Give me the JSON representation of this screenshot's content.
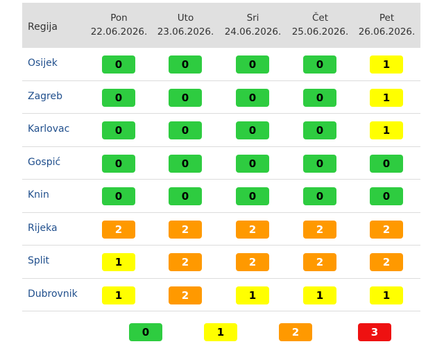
{
  "header": {
    "region_label": "Regija",
    "days": [
      {
        "name": "Pon",
        "date": "22.06.2026."
      },
      {
        "name": "Uto",
        "date": "23.06.2026."
      },
      {
        "name": "Sri",
        "date": "24.06.2026."
      },
      {
        "name": "Čet",
        "date": "25.06.2026."
      },
      {
        "name": "Pet",
        "date": "26.06.2026."
      }
    ]
  },
  "rows": [
    {
      "region": "Osijek",
      "levels": [
        "0",
        "0",
        "0",
        "0",
        "1"
      ]
    },
    {
      "region": "Zagreb",
      "levels": [
        "0",
        "0",
        "0",
        "0",
        "1"
      ]
    },
    {
      "region": "Karlovac",
      "levels": [
        "0",
        "0",
        "0",
        "0",
        "1"
      ]
    },
    {
      "region": "Gospić",
      "levels": [
        "0",
        "0",
        "0",
        "0",
        "0"
      ]
    },
    {
      "region": "Knin",
      "levels": [
        "0",
        "0",
        "0",
        "0",
        "0"
      ]
    },
    {
      "region": "Rijeka",
      "levels": [
        "2",
        "2",
        "2",
        "2",
        "2"
      ]
    },
    {
      "region": "Split",
      "levels": [
        "1",
        "2",
        "2",
        "2",
        "2"
      ]
    },
    {
      "region": "Dubrovnik",
      "levels": [
        "1",
        "2",
        "1",
        "1",
        "1"
      ]
    }
  ],
  "legend": [
    "0",
    "1",
    "2",
    "3"
  ],
  "colors": {
    "level_0": "#2ecc40",
    "level_1": "#ffff00",
    "level_2": "#ff9900",
    "level_3": "#ee1111"
  }
}
